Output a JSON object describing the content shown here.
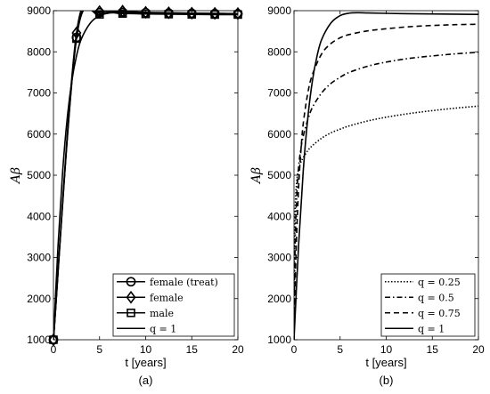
{
  "chart_data": [
    {
      "type": "line",
      "panel_label": "(a)",
      "xlabel": "t [years]",
      "ylabel": "Aβ",
      "xlim": [
        0,
        20
      ],
      "ylim": [
        1000,
        9000
      ],
      "xticks": [
        0,
        5,
        10,
        15,
        20
      ],
      "yticks": [
        1000,
        2000,
        3000,
        4000,
        5000,
        6000,
        7000,
        8000,
        9000
      ],
      "grid": false,
      "legend_position": "bottom-right",
      "series": [
        {
          "name": "female (treat)",
          "marker": "circle",
          "dash": "solid",
          "x": [
            0,
            2.5,
            5,
            7.5,
            10,
            12.5,
            15,
            17.5,
            20
          ],
          "y": [
            1000,
            8350,
            8950,
            8960,
            8950,
            8940,
            8935,
            8930,
            8925
          ]
        },
        {
          "name": "female",
          "marker": "diamond",
          "dash": "solid",
          "x": [
            0,
            2.5,
            5,
            7.5,
            10,
            12.5,
            15,
            17.5,
            20
          ],
          "y": [
            1000,
            8460,
            8980,
            8990,
            8960,
            8950,
            8940,
            8935,
            8930
          ]
        },
        {
          "name": "male",
          "marker": "square",
          "dash": "solid",
          "x": [
            0,
            2.5,
            5,
            7.5,
            10,
            12.5,
            15,
            17.5,
            20
          ],
          "y": [
            1000,
            8320,
            8910,
            8930,
            8920,
            8915,
            8910,
            8905,
            8905
          ]
        },
        {
          "name": "q = 1",
          "marker": "none",
          "dash": "solid",
          "x": [
            0,
            0.5,
            1,
            1.5,
            2,
            2.5,
            3,
            4,
            5,
            6,
            7,
            8,
            10,
            12.5,
            15,
            17.5,
            20
          ],
          "y": [
            1000,
            3300,
            5100,
            6400,
            7300,
            7900,
            8300,
            8700,
            8880,
            8940,
            8950,
            8945,
            8935,
            8925,
            8920,
            8915,
            8910
          ]
        }
      ]
    },
    {
      "type": "line",
      "panel_label": "(b)",
      "xlabel": "t [years]",
      "ylabel": "Aβ",
      "xlim": [
        0,
        20
      ],
      "ylim": [
        1000,
        9000
      ],
      "xticks": [
        0,
        5,
        10,
        15,
        20
      ],
      "yticks": [
        1000,
        2000,
        3000,
        4000,
        5000,
        6000,
        7000,
        8000,
        9000
      ],
      "grid": false,
      "legend_position": "bottom-right",
      "series": [
        {
          "name": "q = 0.25",
          "dash": "dotted",
          "x": [
            0,
            0.05,
            0.15,
            0.3,
            0.5,
            0.75,
            1,
            1.5,
            2,
            3,
            4,
            5,
            6,
            8,
            10,
            12.5,
            15,
            17.5,
            20
          ],
          "y": [
            1000,
            3100,
            4300,
            4850,
            5150,
            5320,
            5430,
            5600,
            5720,
            5900,
            6030,
            6120,
            6200,
            6320,
            6410,
            6500,
            6570,
            6630,
            6680
          ]
        },
        {
          "name": "q = 0.5",
          "dash": "dashdot",
          "x": [
            0,
            0.05,
            0.15,
            0.3,
            0.5,
            0.75,
            1,
            1.5,
            2,
            3,
            4,
            5,
            6,
            8,
            10,
            12.5,
            15,
            17.5,
            20
          ],
          "y": [
            1000,
            2200,
            3600,
            4500,
            5200,
            5650,
            5950,
            6350,
            6650,
            7000,
            7230,
            7380,
            7500,
            7650,
            7750,
            7840,
            7900,
            7950,
            7990
          ]
        },
        {
          "name": "q = 0.75",
          "dash": "dashed",
          "x": [
            0,
            0.1,
            0.25,
            0.5,
            0.75,
            1,
            1.5,
            2,
            3,
            4,
            5,
            6,
            8,
            10,
            12.5,
            15,
            17.5,
            20
          ],
          "y": [
            1000,
            2100,
            3300,
            4700,
            5600,
            6250,
            7000,
            7450,
            7950,
            8200,
            8340,
            8420,
            8510,
            8560,
            8610,
            8640,
            8660,
            8670
          ]
        },
        {
          "name": "q = 1",
          "dash": "solid",
          "x": [
            0,
            0.5,
            1,
            1.5,
            2,
            2.5,
            3,
            4,
            5,
            6,
            7,
            8,
            10,
            12.5,
            15,
            17.5,
            20
          ],
          "y": [
            1000,
            3300,
            5100,
            6400,
            7300,
            7900,
            8300,
            8700,
            8880,
            8940,
            8950,
            8945,
            8935,
            8925,
            8920,
            8915,
            8910
          ]
        }
      ]
    }
  ]
}
